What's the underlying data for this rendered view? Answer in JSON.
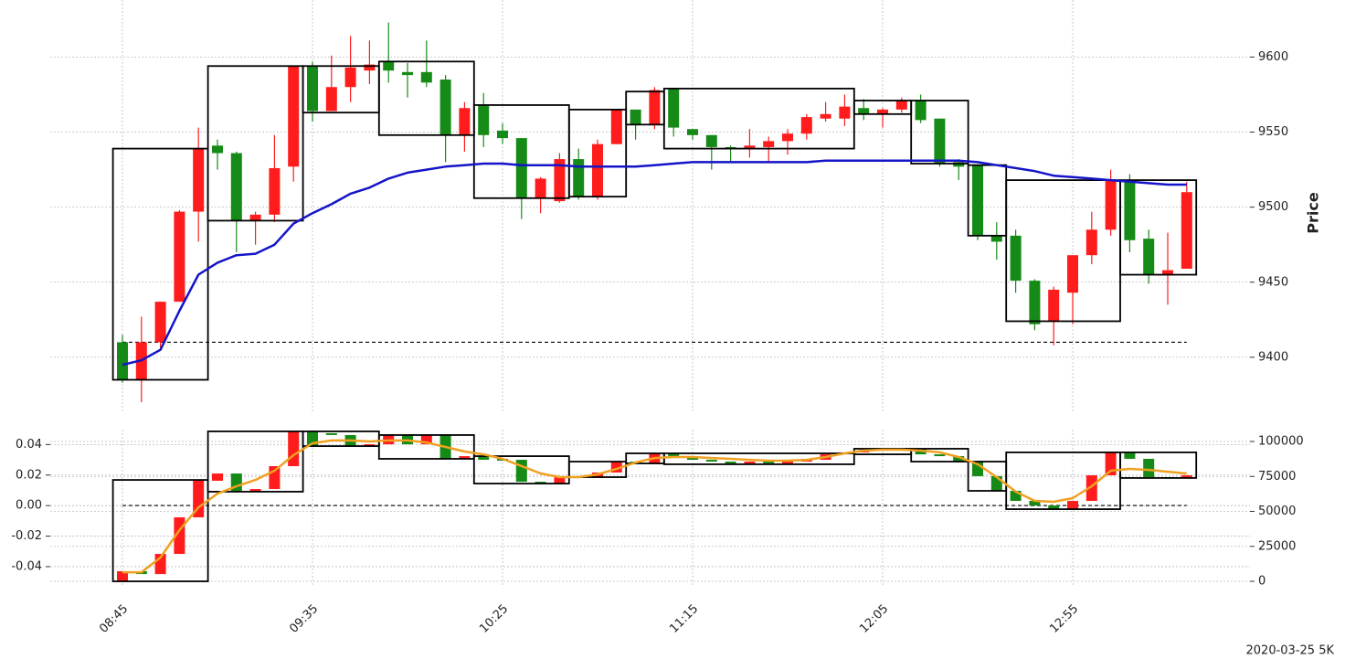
{
  "chart_data": [
    {
      "type": "candlestick",
      "categories": [
        "08:45",
        null,
        null,
        null,
        null,
        null,
        null,
        null,
        null,
        null,
        "09:35",
        null,
        null,
        null,
        null,
        null,
        null,
        null,
        null,
        null,
        "10:25",
        null,
        null,
        null,
        null,
        null,
        null,
        null,
        null,
        null,
        "11:15",
        null,
        null,
        null,
        null,
        null,
        null,
        null,
        null,
        null,
        "12:05",
        null,
        null,
        null,
        null,
        null,
        null,
        null,
        null,
        null,
        "12:55",
        null,
        null,
        null,
        null,
        null,
        null
      ],
      "open": [
        9410,
        9385,
        9410,
        9437,
        9497,
        9541,
        9536,
        9491,
        9495,
        9527,
        9594,
        9564,
        9580,
        9591,
        9597,
        9590,
        9590,
        9585,
        9548,
        9568,
        9551,
        9546,
        9506,
        9504,
        9532,
        9507,
        9542,
        9565,
        9555,
        9579,
        9552,
        9548,
        9540,
        9539,
        9540,
        9544,
        9549,
        9559,
        9559,
        9566,
        9562,
        9565,
        9571,
        9559,
        9530,
        9528,
        9481,
        9481,
        9451,
        9424,
        9443,
        9468,
        9485,
        9518,
        9479,
        9455,
        9459
      ],
      "high": [
        9415,
        9427,
        9437,
        9498,
        9553,
        9545,
        9537,
        9497,
        9548,
        9594,
        9597,
        9601,
        9614,
        9611,
        9623,
        9596,
        9611,
        9588,
        9570,
        9576,
        9556,
        9546,
        9520,
        9536,
        9539,
        9545,
        9565,
        9565,
        9580,
        9579,
        9552,
        9548,
        9541,
        9552,
        9547,
        9552,
        9562,
        9570,
        9575,
        9572,
        9566,
        9573,
        9575,
        9559,
        9532,
        9528,
        9490,
        9485,
        9452,
        9447,
        9468,
        9497,
        9525,
        9522,
        9485,
        9483,
        9517
      ],
      "low": [
        9383,
        9370,
        9405,
        9437,
        9477,
        9525,
        9470,
        9475,
        9490,
        9517,
        9557,
        9564,
        9570,
        9582,
        9583,
        9573,
        9580,
        9530,
        9537,
        9540,
        9542,
        9492,
        9496,
        9503,
        9505,
        9505,
        9542,
        9545,
        9552,
        9547,
        9545,
        9525,
        9530,
        9533,
        9530,
        9535,
        9545,
        9557,
        9554,
        9558,
        9553,
        9563,
        9556,
        9527,
        9518,
        9478,
        9465,
        9443,
        9418,
        9408,
        9422,
        9462,
        9481,
        9470,
        9449,
        9435,
        9459
      ],
      "close": [
        9385,
        9410,
        9437,
        9497,
        9539,
        9536,
        9491,
        9495,
        9526,
        9594,
        9564,
        9580,
        9593,
        9595,
        9591,
        9588,
        9583,
        9548,
        9566,
        9548,
        9546,
        9506,
        9519,
        9532,
        9507,
        9542,
        9565,
        9555,
        9578,
        9553,
        9548,
        9540,
        9539,
        9541,
        9544,
        9549,
        9560,
        9562,
        9567,
        9562,
        9565,
        9571,
        9558,
        9529,
        9527,
        9481,
        9477,
        9451,
        9422,
        9445,
        9468,
        9485,
        9518,
        9478,
        9455,
        9458,
        9510
      ],
      "up_color": "#ff1c1c",
      "down_color": "#168a16",
      "line": {
        "color": "#1414c8",
        "values": [
          9395,
          9398,
          9405,
          9431,
          9455,
          9463,
          9468,
          9469,
          9475,
          9489,
          9496,
          9502,
          9509,
          9513,
          9519,
          9523,
          9525,
          9527,
          9528,
          9529,
          9529,
          9528,
          9528,
          9528,
          9527,
          9527,
          9527,
          9527,
          9528,
          9529,
          9530,
          9530,
          9530,
          9530,
          9530,
          9530,
          9530,
          9531,
          9531,
          9531,
          9531,
          9531,
          9531,
          9531,
          9531,
          9530,
          9528,
          9526,
          9524,
          9521,
          9520,
          9519,
          9518,
          9517,
          9516,
          9515,
          9515
        ]
      },
      "boxes": [
        {
          "x": [
            0,
            4
          ],
          "range": [
            9385,
            9539
          ]
        },
        {
          "x": [
            5,
            9
          ],
          "range": [
            9491,
            9594
          ]
        },
        {
          "x": [
            10,
            13
          ],
          "range": [
            9563,
            9594
          ]
        },
        {
          "x": [
            14,
            18
          ],
          "range": [
            9548,
            9597
          ]
        },
        {
          "x": [
            19,
            23
          ],
          "range": [
            9506,
            9568
          ]
        },
        {
          "x": [
            24,
            26
          ],
          "range": [
            9507,
            9565
          ]
        },
        {
          "x": [
            27,
            28
          ],
          "range": [
            9555,
            9577
          ]
        },
        {
          "x": [
            29,
            38
          ],
          "range": [
            9539,
            9579
          ]
        },
        {
          "x": [
            39,
            41
          ],
          "range": [
            9562,
            9571
          ]
        },
        {
          "x": [
            42,
            44
          ],
          "range": [
            9529,
            9571
          ]
        },
        {
          "x": [
            45,
            46
          ],
          "range": [
            9481,
            9528
          ]
        },
        {
          "x": [
            47,
            52
          ],
          "range": [
            9424,
            9518
          ]
        },
        {
          "x": [
            53,
            56
          ],
          "range": [
            9455,
            9518
          ]
        }
      ],
      "reference_line": 9410,
      "ylabel": "Price",
      "ylim": [
        9364,
        9638
      ],
      "yticks": [
        9400,
        9450,
        9500,
        9550,
        9600
      ],
      "grid": true
    },
    {
      "type": "candlestick",
      "open": [
        0,
        7200,
        5200,
        19600,
        45750,
        71900,
        77100,
        64000,
        66000,
        82350,
        107200,
        105900,
        104600,
        96700,
        98000,
        104600,
        98000,
        104600,
        87600,
        89500,
        87600,
        86900,
        71200,
        69900,
        74500,
        74000,
        77800,
        85600,
        84300,
        91500,
        88200,
        86900,
        85600,
        84300,
        85600,
        84300,
        85600,
        86900,
        90800,
        92200,
        93500,
        94100,
        94800,
        90800,
        89500,
        85600,
        75200,
        64700,
        57500,
        54200,
        51600,
        57500,
        75800,
        92200,
        87600,
        74500,
        73900
      ],
      "close": [
        7200,
        5200,
        19600,
        45750,
        71900,
        77100,
        64000,
        66000,
        82350,
        107200,
        96700,
        104600,
        96700,
        98000,
        104600,
        98000,
        104600,
        87600,
        89500,
        86900,
        86300,
        71200,
        69900,
        74500,
        74000,
        77800,
        85600,
        84300,
        91500,
        88200,
        86900,
        85600,
        84300,
        85600,
        84300,
        85600,
        86900,
        90800,
        92200,
        93500,
        94100,
        94800,
        90800,
        89500,
        85600,
        75200,
        64700,
        57500,
        54200,
        51600,
        57500,
        75800,
        92200,
        87600,
        74500,
        73900,
        75800
      ],
      "up_color": "#ff1c1c",
      "down_color": "#168a16",
      "line": {
        "color": "#f0a020",
        "values": [
          6500,
          6500,
          17000,
          36600,
          52900,
          62700,
          68000,
          72500,
          79100,
          90200,
          98700,
          100700,
          100700,
          100000,
          100700,
          100700,
          99300,
          96100,
          92800,
          90800,
          87600,
          82400,
          77100,
          74500,
          74500,
          76500,
          80400,
          85000,
          88200,
          88900,
          88900,
          88200,
          87600,
          86900,
          86300,
          86300,
          86900,
          88900,
          91500,
          93500,
          94100,
          94100,
          93500,
          92200,
          88900,
          83700,
          74500,
          64100,
          57500,
          56900,
          59500,
          68000,
          79100,
          80400,
          79700,
          78400,
          77100
        ]
      },
      "boxes": [
        {
          "x": [
            0,
            4
          ],
          "range": [
            0,
            72500
          ]
        },
        {
          "x": [
            5,
            9
          ],
          "range": [
            64100,
            107200
          ]
        },
        {
          "x": [
            10,
            13
          ],
          "range": [
            96700,
            107200
          ]
        },
        {
          "x": [
            14,
            18
          ],
          "range": [
            87600,
            104600
          ]
        },
        {
          "x": [
            19,
            23
          ],
          "range": [
            69900,
            89500
          ]
        },
        {
          "x": [
            24,
            26
          ],
          "range": [
            74500,
            85600
          ]
        },
        {
          "x": [
            27,
            28
          ],
          "range": [
            84300,
            91500
          ]
        },
        {
          "x": [
            29,
            38
          ],
          "range": [
            83700,
            91500
          ]
        },
        {
          "x": [
            39,
            41
          ],
          "range": [
            90800,
            94800
          ]
        },
        {
          "x": [
            42,
            44
          ],
          "range": [
            85600,
            94800
          ]
        },
        {
          "x": [
            45,
            46
          ],
          "range": [
            64700,
            85600
          ]
        },
        {
          "x": [
            47,
            52
          ],
          "range": [
            51600,
            92200
          ]
        },
        {
          "x": [
            53,
            56
          ],
          "range": [
            73900,
            92200
          ]
        }
      ],
      "reference_line": 54200,
      "ylim": [
        -2600,
        108500
      ],
      "yticks": [
        0,
        25000,
        50000,
        75000,
        100000
      ],
      "y2lim": [
        -0.052,
        0.0498
      ],
      "y2ticks": [
        -0.04,
        -0.02,
        {
          "value": 0,
          "label": "0.00"
        },
        0.02,
        0.04
      ],
      "grid": true
    }
  ],
  "footer": "2020-03-25 5K"
}
